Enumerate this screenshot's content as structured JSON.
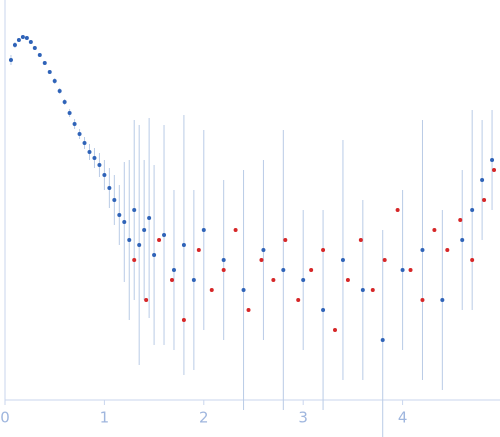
{
  "chart_data": {
    "type": "scatter",
    "xlim": [
      0,
      4.98
    ],
    "xticks": [
      0,
      1,
      2,
      3,
      4
    ],
    "ylim": [
      0,
      4
    ],
    "series": [
      {
        "color": "#2f63b8",
        "x": [
          0.06,
          0.1,
          0.14,
          0.18,
          0.22,
          0.26,
          0.3,
          0.35,
          0.4,
          0.45,
          0.5,
          0.55,
          0.6,
          0.65,
          0.7,
          0.75,
          0.8,
          0.85,
          0.9,
          0.95,
          1.0,
          1.05,
          1.1,
          1.15,
          1.2,
          1.25,
          1.3,
          1.35,
          1.4,
          1.45,
          1.5,
          1.6,
          1.7,
          1.8,
          1.9,
          2.0,
          2.2,
          2.4,
          2.6,
          2.8,
          3.0,
          3.2,
          3.4,
          3.6,
          3.8,
          4.0,
          4.2,
          4.4,
          4.6,
          4.7,
          4.8,
          4.9
        ],
        "values": [
          3.4,
          3.55,
          3.6,
          3.63,
          3.62,
          3.58,
          3.52,
          3.45,
          3.37,
          3.28,
          3.19,
          3.09,
          2.98,
          2.87,
          2.76,
          2.66,
          2.57,
          2.48,
          2.42,
          2.35,
          2.25,
          2.12,
          2.0,
          1.85,
          1.78,
          1.6,
          1.9,
          1.55,
          1.7,
          1.82,
          1.45,
          1.65,
          1.3,
          1.55,
          1.2,
          1.7,
          1.4,
          1.1,
          1.5,
          1.3,
          1.2,
          0.9,
          1.4,
          1.1,
          0.6,
          1.3,
          1.5,
          1.0,
          1.6,
          1.9,
          2.2,
          2.4
        ],
        "errors": [
          0.05,
          0.03,
          0.02,
          0.02,
          0.02,
          0.02,
          0.02,
          0.02,
          0.02,
          0.02,
          0.03,
          0.03,
          0.03,
          0.04,
          0.05,
          0.05,
          0.06,
          0.08,
          0.1,
          0.12,
          0.15,
          0.2,
          0.25,
          0.3,
          0.6,
          0.8,
          0.9,
          1.2,
          0.7,
          1.0,
          0.9,
          1.1,
          0.8,
          1.3,
          0.9,
          1.0,
          0.8,
          1.2,
          0.9,
          1.4,
          0.7,
          1.0,
          1.2,
          0.9,
          1.1,
          0.8,
          1.3,
          0.9,
          0.7,
          1.0,
          0.6,
          0.5
        ]
      },
      {
        "color": "#d62728",
        "x": [
          1.3,
          1.42,
          1.55,
          1.68,
          1.8,
          1.95,
          2.08,
          2.2,
          2.32,
          2.45,
          2.58,
          2.7,
          2.82,
          2.95,
          3.08,
          3.2,
          3.32,
          3.45,
          3.58,
          3.7,
          3.82,
          3.95,
          4.08,
          4.2,
          4.32,
          4.45,
          4.58,
          4.7,
          4.82,
          4.92
        ],
        "values": [
          1.4,
          1.0,
          1.6,
          1.2,
          0.8,
          1.5,
          1.1,
          1.3,
          1.7,
          0.9,
          1.4,
          1.2,
          1.6,
          1.0,
          1.3,
          1.5,
          0.7,
          1.2,
          1.6,
          1.1,
          1.4,
          1.9,
          1.3,
          1.0,
          1.7,
          1.5,
          1.8,
          1.4,
          2.0,
          2.3
        ]
      }
    ]
  }
}
